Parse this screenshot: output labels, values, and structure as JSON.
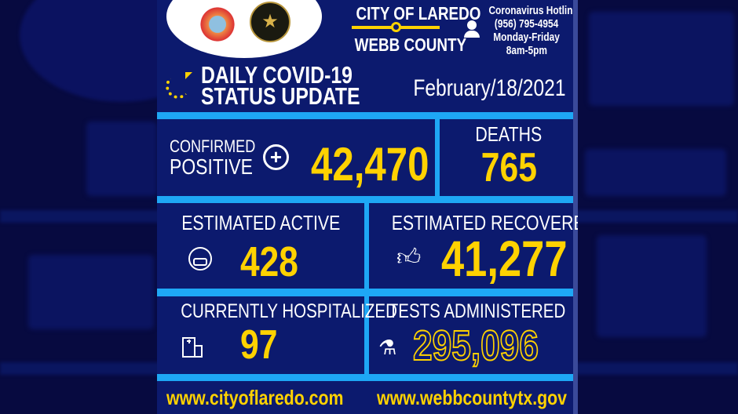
{
  "header": {
    "city": "CITY OF LAREDO",
    "county": "WEBB COUNTY",
    "hotline_title": "Coronavirus Hotline",
    "hotline_phone": "(956) 795-4954",
    "hotline_days": "Monday-Friday",
    "hotline_hours": "8am-5pm",
    "title_line1": "DAILY COVID-19",
    "title_line2": "STATUS UPDATE",
    "date": "February/18/2021"
  },
  "stats": {
    "confirmed_label1": "CONFIRMED",
    "confirmed_label2": "POSITIVE",
    "confirmed_value": "42,470",
    "deaths_label": "DEATHS",
    "deaths_value": "765",
    "active_label": "ESTIMATED ACTIVE",
    "active_value": "428",
    "recovered_label": "ESTIMATED RECOVERED",
    "recovered_value": "41,277",
    "hospitalized_label": "CURRENTLY HOSPITALIZED",
    "hospitalized_value": "97",
    "tests_label": "TESTS ADMINISTERED",
    "tests_value": "295,096"
  },
  "footer": {
    "city_url": "www.cityoflaredo.com",
    "county_url": "www.webbcountytx.gov"
  },
  "colors": {
    "panel": "#0c1a6e",
    "divider": "#1ea7f5",
    "accent": "#ffd200"
  },
  "icons": [
    "refresh-icon",
    "plus-circle-icon",
    "masked-face-icon",
    "thumbs-up-icon",
    "hospital-icon",
    "flask-icon",
    "headset-icon",
    "city-seal-logo",
    "county-seal-logo"
  ]
}
